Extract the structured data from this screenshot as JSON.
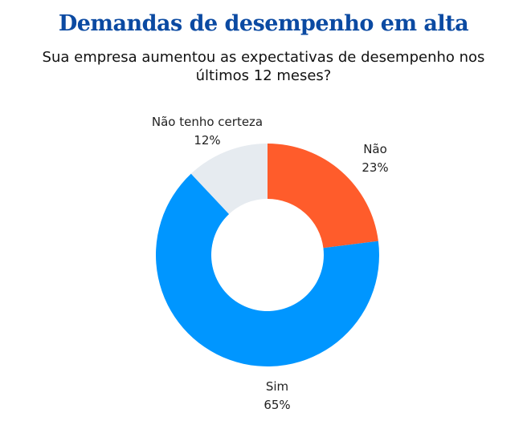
{
  "chart_data": {
    "type": "pie",
    "donut": true,
    "title": "Demandas de desempenho em alta",
    "subtitle": "Sua empresa aumentou as expectativas de desempenho nos últimos 12 meses?",
    "categories": [
      "Não",
      "Sim",
      "Não tenho certeza"
    ],
    "values": [
      23,
      65,
      12
    ],
    "value_labels": [
      "23%",
      "65%",
      "12%"
    ],
    "colors": [
      "#ff5c2b",
      "#0096ff",
      "#e6ebf0"
    ],
    "start": "top",
    "direction": "clockwise"
  }
}
